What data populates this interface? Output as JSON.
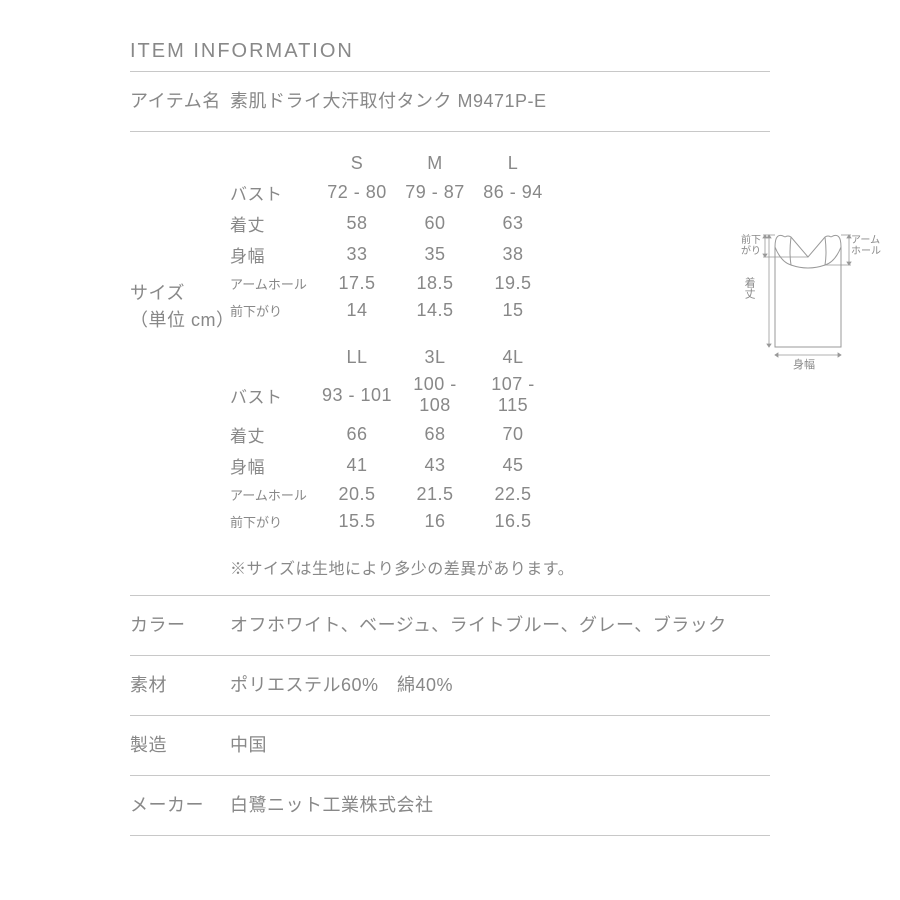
{
  "header": "ITEM INFORMATION",
  "item_name_label": "アイテム名",
  "item_name_value": "素肌ドライ大汗取付タンク M9471P-E",
  "size_label_l1": "サイズ",
  "size_label_l2": "（単位 cm）",
  "size_rows": [
    "バスト",
    "着丈",
    "身幅",
    "アームホール",
    "前下がり"
  ],
  "size_block1": {
    "headers": [
      "S",
      "M",
      "L"
    ],
    "data": [
      [
        "72 - 80",
        "79 - 87",
        "86 - 94"
      ],
      [
        "58",
        "60",
        "63"
      ],
      [
        "33",
        "35",
        "38"
      ],
      [
        "17.5",
        "18.5",
        "19.5"
      ],
      [
        "14",
        "14.5",
        "15"
      ]
    ]
  },
  "size_block2": {
    "headers": [
      "LL",
      "3L",
      "4L"
    ],
    "data": [
      [
        "93 - 101",
        "100 - 108",
        "107 - 115"
      ],
      [
        "66",
        "68",
        "70"
      ],
      [
        "41",
        "43",
        "45"
      ],
      [
        "20.5",
        "21.5",
        "22.5"
      ],
      [
        "15.5",
        "16",
        "16.5"
      ]
    ]
  },
  "size_note": "※サイズは生地により多少の差異があります。",
  "color_label": "カラー",
  "color_value": "オフホワイト、ベージュ、ライトブルー、グレー、ブラック",
  "material_label": "素材",
  "material_value": "ポリエステル60%　綿40%",
  "made_label": "製造",
  "made_value": "中国",
  "maker_label": "メーカー",
  "maker_value": "白鷺ニット工業株式会社",
  "diagram_labels": {
    "front_drop": "前下\nがり",
    "armhole": "アーム\nホール",
    "length": "着丈",
    "width": "身幅"
  }
}
